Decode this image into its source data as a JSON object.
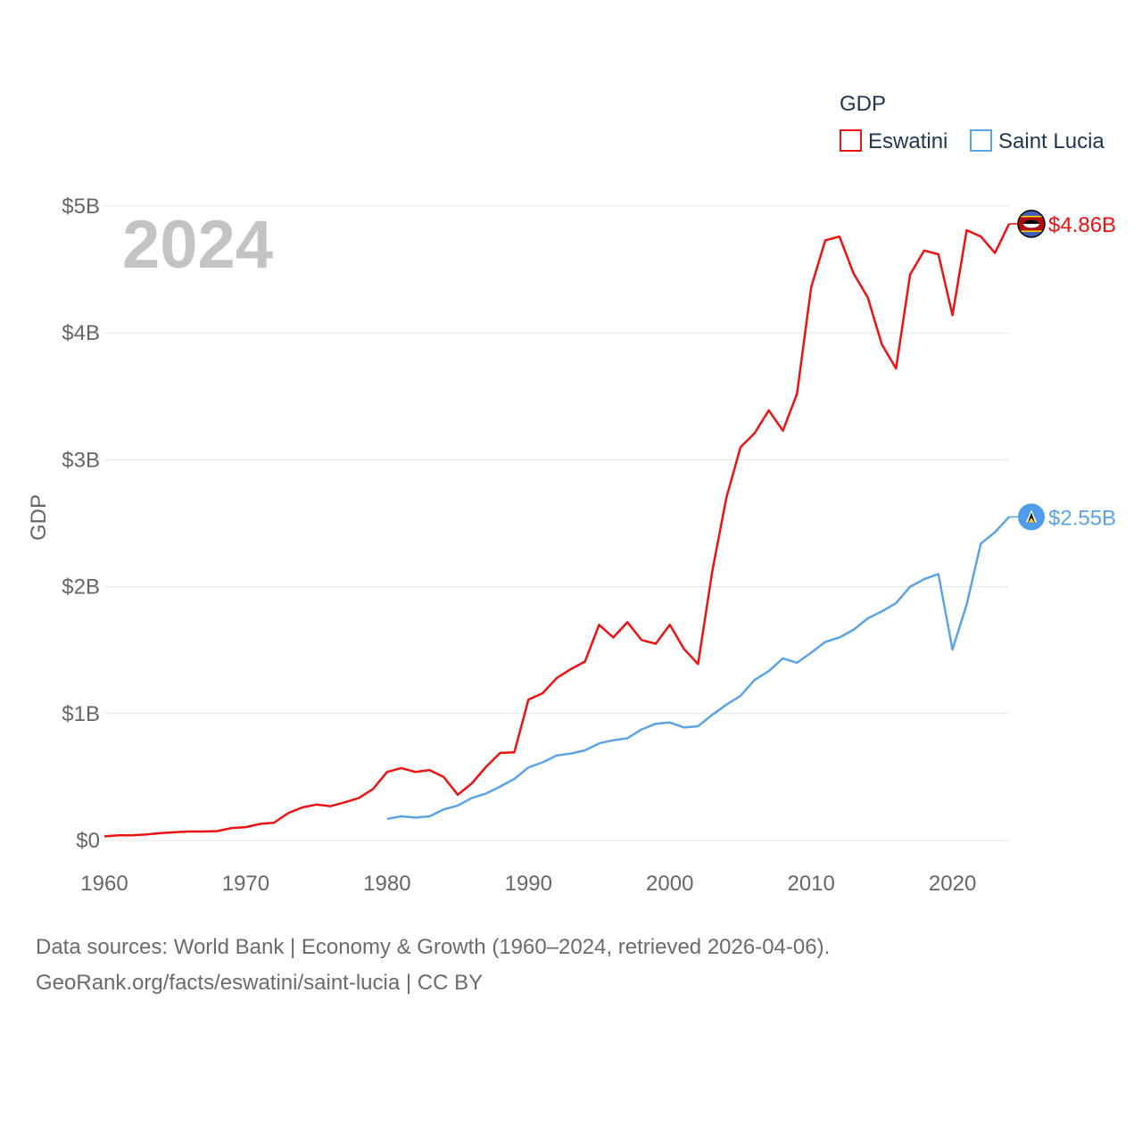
{
  "chart_data": {
    "type": "line",
    "highlight_year": "2024",
    "ylabel": "GDP",
    "xlabel": "",
    "xlim": [
      1960,
      2024
    ],
    "ylim": [
      0,
      5000000000
    ],
    "x_ticks": [
      1960,
      1970,
      1980,
      1990,
      2000,
      2010,
      2020
    ],
    "x_tick_labels": [
      "1960",
      "1970",
      "1980",
      "1990",
      "2000",
      "2010",
      "2020"
    ],
    "y_ticks": [
      0,
      1000000000,
      2000000000,
      3000000000,
      4000000000,
      5000000000
    ],
    "y_tick_labels": [
      "$0",
      "$1B",
      "$2B",
      "$3B",
      "$4B",
      "$5B"
    ],
    "grid": true,
    "legend": {
      "title": "GDP",
      "position": "top-right"
    },
    "series": [
      {
        "name": "Eswatini",
        "color": "#ee1111",
        "end_label": "$4.86B",
        "flag": "eswatini-flag",
        "x": [
          1960,
          1961,
          1962,
          1963,
          1964,
          1965,
          1966,
          1967,
          1968,
          1969,
          1970,
          1971,
          1972,
          1973,
          1974,
          1975,
          1976,
          1977,
          1978,
          1979,
          1980,
          1981,
          1982,
          1983,
          1984,
          1985,
          1986,
          1987,
          1988,
          1989,
          1990,
          1991,
          1992,
          1993,
          1994,
          1995,
          1996,
          1997,
          1998,
          1999,
          2000,
          2001,
          2002,
          2003,
          2004,
          2005,
          2006,
          2007,
          2008,
          2009,
          2010,
          2011,
          2012,
          2013,
          2014,
          2015,
          2016,
          2017,
          2018,
          2019,
          2020,
          2021,
          2022,
          2023,
          2024
        ],
        "values": [
          32000000,
          40000000,
          41000000,
          48000000,
          58000000,
          65000000,
          70000000,
          70000000,
          74000000,
          98000000,
          105000000,
          130000000,
          140000000,
          215000000,
          260000000,
          283000000,
          270000000,
          300000000,
          335000000,
          405000000,
          540000000,
          570000000,
          540000000,
          555000000,
          500000000,
          360000000,
          450000000,
          580000000,
          690000000,
          695000000,
          1110000000,
          1160000000,
          1280000000,
          1350000000,
          1410000000,
          1700000000,
          1600000000,
          1720000000,
          1580000000,
          1550000000,
          1700000000,
          1510000000,
          1390000000,
          2120000000,
          2700000000,
          3100000000,
          3210000000,
          3390000000,
          3230000000,
          3520000000,
          4360000000,
          4730000000,
          4760000000,
          4470000000,
          4280000000,
          3910000000,
          3720000000,
          4460000000,
          4650000000,
          4620000000,
          4140000000,
          4810000000,
          4760000000,
          4630000000,
          4860000000
        ]
      },
      {
        "name": "Saint Lucia",
        "color": "#5aa4e6",
        "end_label": "$2.55B",
        "flag": "saint-lucia-flag",
        "x": [
          1980,
          1981,
          1982,
          1983,
          1984,
          1985,
          1986,
          1987,
          1988,
          1989,
          1990,
          1991,
          1992,
          1993,
          1994,
          1995,
          1996,
          1997,
          1998,
          1999,
          2000,
          2001,
          2002,
          2003,
          2004,
          2005,
          2006,
          2007,
          2008,
          2009,
          2010,
          2011,
          2012,
          2013,
          2014,
          2015,
          2016,
          2017,
          2018,
          2019,
          2020,
          2021,
          2022,
          2023,
          2024
        ],
        "values": [
          170000000,
          190000000,
          180000000,
          190000000,
          245000000,
          275000000,
          335000000,
          370000000,
          425000000,
          485000000,
          575000000,
          615000000,
          670000000,
          685000000,
          710000000,
          765000000,
          790000000,
          805000000,
          875000000,
          920000000,
          930000000,
          890000000,
          900000000,
          990000000,
          1070000000,
          1140000000,
          1265000000,
          1335000000,
          1435000000,
          1400000000,
          1480000000,
          1565000000,
          1600000000,
          1660000000,
          1750000000,
          1805000000,
          1870000000,
          2000000000,
          2060000000,
          2100000000,
          1505000000,
          1860000000,
          2340000000,
          2430000000,
          2550000000
        ]
      }
    ]
  },
  "source": {
    "line1": "Data sources: World Bank | Economy & Growth (1960–2024, retrieved 2026-04-06).",
    "line2": "GeoRank.org/facts/eswatini/saint-lucia | CC BY"
  }
}
